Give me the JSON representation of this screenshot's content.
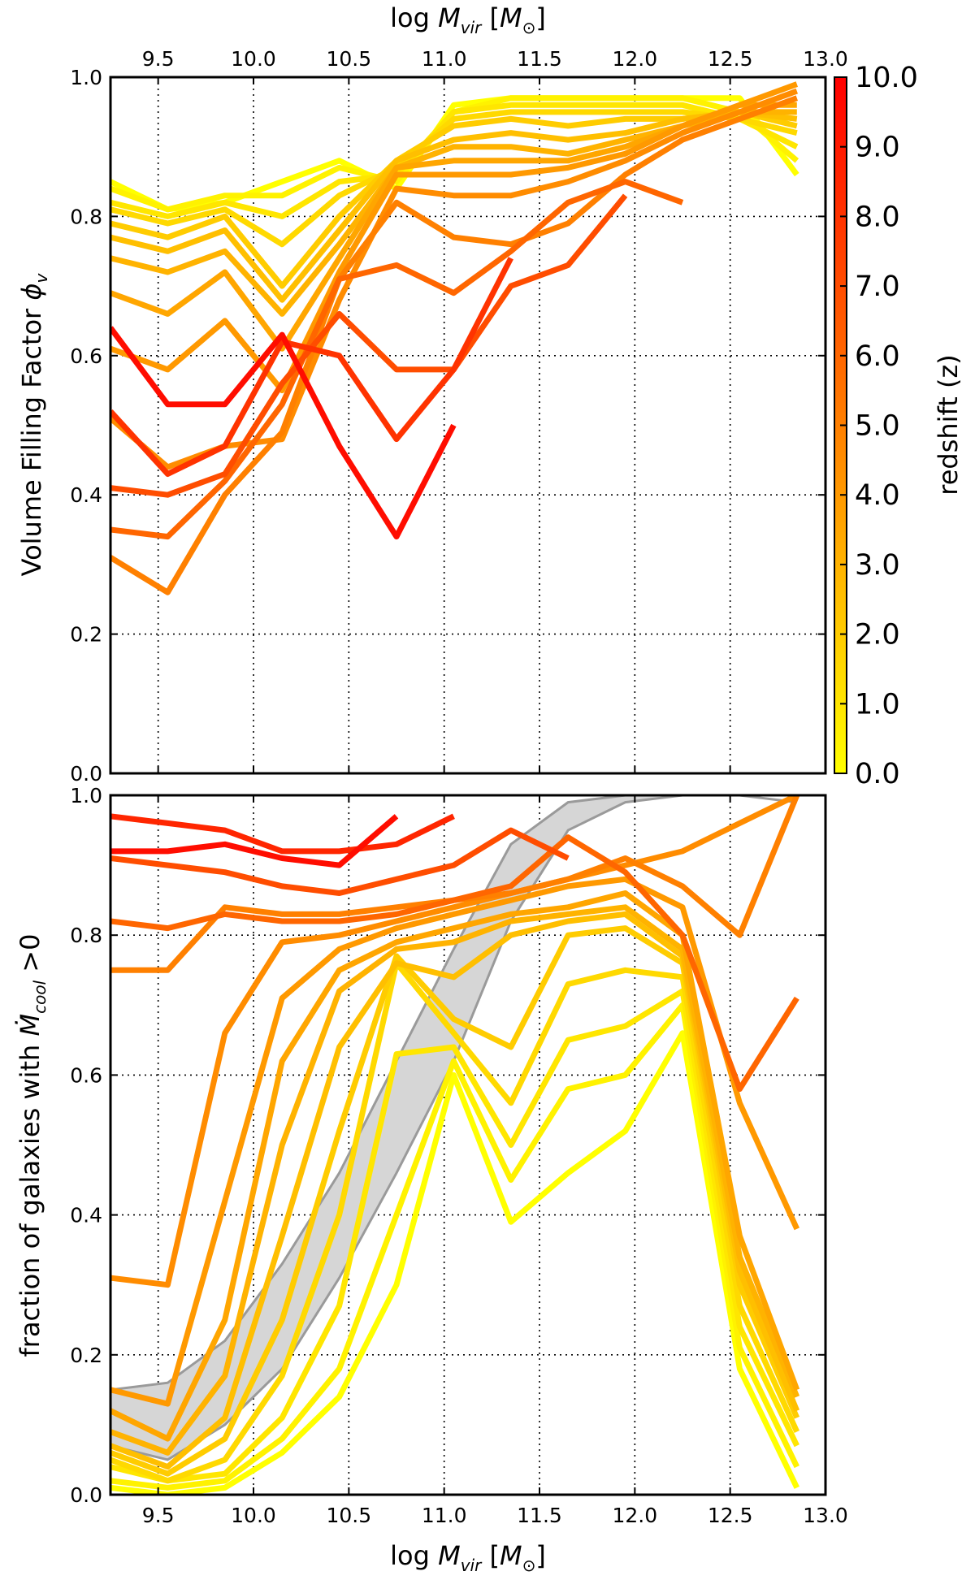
{
  "chart_data": [
    {
      "panel": "top",
      "type": "line",
      "xlabel_top": "log M_vir [M_⊙]",
      "ylabel": "Volume Filling Factor ϕ_v",
      "xlim": [
        9.25,
        13.0
      ],
      "ylim": [
        0.0,
        1.0
      ],
      "xticks": [
        "9.5",
        "10.0",
        "10.5",
        "11.0",
        "11.5",
        "12.0",
        "12.5",
        "13.0"
      ],
      "yticks": [
        "0.0",
        "0.2",
        "0.4",
        "0.6",
        "0.8",
        "1.0"
      ],
      "grid": true,
      "series": [
        {
          "z": 9.5,
          "x": [
            9.25,
            9.55,
            9.85,
            10.15,
            10.45,
            10.75,
            11.05
          ],
          "y": [
            0.64,
            0.53,
            0.53,
            0.63,
            0.47,
            0.34,
            0.5
          ]
        },
        {
          "z": 8.0,
          "x": [
            9.25,
            9.55,
            9.85,
            10.15,
            10.45,
            10.75,
            11.05,
            11.35
          ],
          "y": [
            0.52,
            0.43,
            0.47,
            0.62,
            0.6,
            0.48,
            0.58,
            0.74
          ]
        },
        {
          "z": 7.0,
          "x": [
            9.25,
            9.55,
            9.85,
            10.15,
            10.45,
            10.75,
            11.05,
            11.35,
            11.65,
            11.95
          ],
          "y": [
            0.41,
            0.4,
            0.43,
            0.56,
            0.66,
            0.58,
            0.58,
            0.7,
            0.73,
            0.83
          ]
        },
        {
          "z": 6.0,
          "x": [
            9.25,
            9.55,
            9.85,
            10.15,
            10.45,
            10.75,
            11.05,
            11.35,
            11.65,
            11.95,
            12.25
          ],
          "y": [
            0.35,
            0.34,
            0.42,
            0.53,
            0.71,
            0.73,
            0.69,
            0.75,
            0.82,
            0.85,
            0.82
          ]
        },
        {
          "z": 5.0,
          "x": [
            9.25,
            9.55,
            9.85,
            10.15,
            10.45,
            10.75,
            11.05,
            11.35,
            11.65,
            11.95,
            12.25,
            12.55,
            12.85
          ],
          "y": [
            0.31,
            0.26,
            0.4,
            0.49,
            0.71,
            0.82,
            0.77,
            0.76,
            0.79,
            0.86,
            0.91,
            0.94,
            0.97
          ]
        },
        {
          "z": 4.5,
          "x": [
            9.25,
            9.55,
            9.85,
            10.15,
            10.45,
            10.75,
            11.05,
            11.35,
            11.65,
            11.95,
            12.25,
            12.55,
            12.85
          ],
          "y": [
            0.51,
            0.44,
            0.47,
            0.48,
            0.68,
            0.84,
            0.83,
            0.83,
            0.85,
            0.88,
            0.92,
            0.95,
            0.98
          ]
        },
        {
          "z": 4.0,
          "x": [
            9.25,
            9.55,
            9.85,
            10.15,
            10.45,
            10.75,
            11.05,
            11.35,
            11.65,
            11.95,
            12.25,
            12.55,
            12.85
          ],
          "y": [
            0.61,
            0.58,
            0.65,
            0.55,
            0.72,
            0.86,
            0.86,
            0.86,
            0.87,
            0.89,
            0.93,
            0.96,
            0.99
          ]
        },
        {
          "z": 3.5,
          "x": [
            9.25,
            9.55,
            9.85,
            10.15,
            10.45,
            10.75,
            11.05,
            11.35,
            11.65,
            11.95,
            12.25,
            12.55,
            12.85
          ],
          "y": [
            0.69,
            0.66,
            0.72,
            0.61,
            0.74,
            0.87,
            0.88,
            0.88,
            0.88,
            0.9,
            0.93,
            0.96,
            0.96
          ]
        },
        {
          "z": 3.0,
          "x": [
            9.25,
            9.55,
            9.85,
            10.15,
            10.45,
            10.75,
            11.05,
            11.35,
            11.65,
            11.95,
            12.25,
            12.55,
            12.85
          ],
          "y": [
            0.74,
            0.72,
            0.75,
            0.66,
            0.76,
            0.87,
            0.9,
            0.9,
            0.89,
            0.91,
            0.93,
            0.95,
            0.95
          ]
        },
        {
          "z": 2.5,
          "x": [
            9.25,
            9.55,
            9.85,
            10.15,
            10.45,
            10.75,
            11.05,
            11.35,
            11.65,
            11.95,
            12.25,
            12.55,
            12.85
          ],
          "y": [
            0.77,
            0.75,
            0.78,
            0.68,
            0.78,
            0.88,
            0.91,
            0.92,
            0.91,
            0.92,
            0.94,
            0.95,
            0.94
          ]
        },
        {
          "z": 2.0,
          "x": [
            9.25,
            9.55,
            9.85,
            10.15,
            10.45,
            10.75,
            11.05,
            11.35,
            11.65,
            11.95,
            12.25,
            12.55,
            12.85
          ],
          "y": [
            0.79,
            0.77,
            0.8,
            0.7,
            0.8,
            0.88,
            0.93,
            0.94,
            0.93,
            0.94,
            0.94,
            0.95,
            0.93
          ]
        },
        {
          "z": 1.5,
          "x": [
            9.25,
            9.55,
            9.85,
            10.15,
            10.45,
            10.75,
            11.05,
            11.35,
            11.65,
            11.95,
            12.25,
            12.55,
            12.85
          ],
          "y": [
            0.81,
            0.79,
            0.81,
            0.76,
            0.83,
            0.87,
            0.94,
            0.95,
            0.95,
            0.95,
            0.95,
            0.94,
            0.92
          ]
        },
        {
          "z": 1.0,
          "x": [
            9.25,
            9.55,
            9.85,
            10.15,
            10.45,
            10.75,
            11.05,
            11.35,
            11.65,
            11.95,
            12.25,
            12.55,
            12.85
          ],
          "y": [
            0.82,
            0.8,
            0.82,
            0.8,
            0.85,
            0.86,
            0.95,
            0.96,
            0.96,
            0.96,
            0.96,
            0.94,
            0.9
          ]
        },
        {
          "z": 0.5,
          "x": [
            9.25,
            9.55,
            9.85,
            10.15,
            10.45,
            10.75,
            11.05,
            11.35,
            11.65,
            11.95,
            12.25,
            12.55,
            12.85
          ],
          "y": [
            0.84,
            0.81,
            0.83,
            0.83,
            0.87,
            0.85,
            0.95,
            0.97,
            0.97,
            0.97,
            0.97,
            0.95,
            0.88
          ]
        },
        {
          "z": 0.0,
          "x": [
            9.25,
            9.55,
            9.85,
            10.15,
            10.45,
            10.75,
            11.05,
            11.35,
            11.65,
            11.95,
            12.25,
            12.55,
            12.85
          ],
          "y": [
            0.85,
            0.81,
            0.82,
            0.85,
            0.88,
            0.84,
            0.96,
            0.97,
            0.97,
            0.97,
            0.97,
            0.97,
            0.86
          ]
        }
      ]
    },
    {
      "panel": "bottom",
      "type": "line",
      "xlabel": "log M_vir [M_⊙]",
      "ylabel": "fraction of galaxies with Ṁ_cool >0",
      "xlim": [
        9.25,
        13.0
      ],
      "ylim": [
        0.0,
        1.0
      ],
      "xticks": [
        "9.5",
        "10.0",
        "10.5",
        "11.0",
        "11.5",
        "12.0",
        "12.5",
        "13.0"
      ],
      "yticks": [
        "0.0",
        "0.2",
        "0.4",
        "0.6",
        "0.8",
        "1.0"
      ],
      "grid": true,
      "band": {
        "x": [
          9.25,
          9.55,
          9.85,
          10.15,
          10.45,
          10.75,
          11.05,
          11.35,
          11.65,
          11.95,
          12.25,
          12.55,
          12.85
        ],
        "upper": [
          0.15,
          0.16,
          0.22,
          0.33,
          0.46,
          0.62,
          0.78,
          0.93,
          0.99,
          1.0,
          1.0,
          1.0,
          0.99
        ],
        "lower": [
          0.07,
          0.05,
          0.1,
          0.18,
          0.31,
          0.46,
          0.62,
          0.82,
          0.95,
          0.99,
          1.0,
          1.0,
          0.99
        ]
      },
      "series": [
        {
          "z": 9.5,
          "x": [
            9.25,
            9.55,
            9.85,
            10.15,
            10.45,
            10.75
          ],
          "y": [
            0.92,
            0.92,
            0.93,
            0.91,
            0.9,
            0.97
          ]
        },
        {
          "z": 8.5,
          "x": [
            9.25,
            9.55,
            9.85,
            10.15,
            10.45,
            10.75,
            11.05
          ],
          "y": [
            0.97,
            0.96,
            0.95,
            0.92,
            0.92,
            0.93,
            0.97
          ]
        },
        {
          "z": 7.0,
          "x": [
            9.25,
            9.55,
            9.85,
            10.15,
            10.45,
            10.75,
            11.05,
            11.35,
            11.65
          ],
          "y": [
            0.91,
            0.9,
            0.89,
            0.87,
            0.86,
            0.88,
            0.9,
            0.95,
            0.91
          ]
        },
        {
          "z": 6.0,
          "x": [
            9.25,
            9.55,
            9.85,
            10.15,
            10.45,
            10.75,
            11.05,
            11.35,
            11.65,
            11.95,
            12.25,
            12.55,
            12.85
          ],
          "y": [
            0.82,
            0.81,
            0.83,
            0.82,
            0.82,
            0.83,
            0.85,
            0.87,
            0.94,
            0.89,
            0.8,
            0.58,
            0.71
          ]
        },
        {
          "z": 5.0,
          "x": [
            9.25,
            9.55,
            9.85,
            10.15,
            10.45,
            10.75,
            11.05,
            11.35,
            11.65,
            11.95,
            12.25,
            12.55,
            12.85
          ],
          "y": [
            0.75,
            0.75,
            0.84,
            0.83,
            0.83,
            0.84,
            0.85,
            0.86,
            0.88,
            0.91,
            0.87,
            0.8,
            1.0
          ]
        },
        {
          "z": 4.5,
          "x": [
            9.25,
            9.55,
            9.85,
            10.15,
            10.45,
            10.75,
            11.05,
            11.35,
            11.65,
            11.95,
            12.25,
            12.55,
            12.85
          ],
          "y": [
            0.31,
            0.3,
            0.66,
            0.79,
            0.8,
            0.82,
            0.84,
            0.86,
            0.88,
            0.9,
            0.92,
            0.96,
            1.0
          ]
        },
        {
          "z": 4.0,
          "x": [
            9.25,
            9.55,
            9.85,
            10.15,
            10.45,
            10.75,
            11.05,
            11.35,
            11.65,
            11.95,
            12.25,
            12.55,
            12.85
          ],
          "y": [
            0.15,
            0.13,
            0.42,
            0.71,
            0.78,
            0.81,
            0.83,
            0.85,
            0.87,
            0.88,
            0.84,
            0.56,
            0.38
          ]
        },
        {
          "z": 3.5,
          "x": [
            9.25,
            9.55,
            9.85,
            10.15,
            10.45,
            10.75,
            11.05,
            11.35,
            11.65,
            11.95,
            12.25,
            12.55,
            12.85
          ],
          "y": [
            0.12,
            0.08,
            0.25,
            0.62,
            0.75,
            0.79,
            0.81,
            0.83,
            0.84,
            0.86,
            0.8,
            0.37,
            0.15
          ]
        },
        {
          "z": 3.0,
          "x": [
            9.25,
            9.55,
            9.85,
            10.15,
            10.45,
            10.75,
            11.05,
            11.35,
            11.65,
            11.95,
            12.25,
            12.55,
            12.85
          ],
          "y": [
            0.09,
            0.06,
            0.17,
            0.5,
            0.72,
            0.78,
            0.79,
            0.82,
            0.83,
            0.84,
            0.78,
            0.34,
            0.14
          ]
        },
        {
          "z": 2.5,
          "x": [
            9.25,
            9.55,
            9.85,
            10.15,
            10.45,
            10.75,
            11.05,
            11.35,
            11.65,
            11.95,
            12.25,
            12.55,
            12.85
          ],
          "y": [
            0.07,
            0.04,
            0.11,
            0.37,
            0.64,
            0.76,
            0.74,
            0.8,
            0.82,
            0.83,
            0.77,
            0.32,
            0.12
          ]
        },
        {
          "z": 2.0,
          "x": [
            9.25,
            9.55,
            9.85,
            10.15,
            10.45,
            10.75,
            11.05,
            11.35,
            11.65,
            11.95,
            12.25,
            12.55,
            12.85
          ],
          "y": [
            0.06,
            0.03,
            0.08,
            0.25,
            0.52,
            0.77,
            0.68,
            0.64,
            0.8,
            0.81,
            0.76,
            0.3,
            0.11
          ]
        },
        {
          "z": 1.5,
          "x": [
            9.25,
            9.55,
            9.85,
            10.15,
            10.45,
            10.75,
            11.05,
            11.35,
            11.65,
            11.95,
            12.25,
            12.55,
            12.85
          ],
          "y": [
            0.05,
            0.02,
            0.05,
            0.17,
            0.4,
            0.76,
            0.66,
            0.56,
            0.73,
            0.75,
            0.74,
            0.27,
            0.09
          ]
        },
        {
          "z": 1.0,
          "x": [
            9.25,
            9.55,
            9.85,
            10.15,
            10.45,
            10.75,
            11.05,
            11.35,
            11.65,
            11.95,
            12.25,
            12.55,
            12.85
          ],
          "y": [
            0.04,
            0.02,
            0.03,
            0.11,
            0.27,
            0.63,
            0.64,
            0.5,
            0.65,
            0.67,
            0.72,
            0.24,
            0.07
          ]
        },
        {
          "z": 0.5,
          "x": [
            9.25,
            9.55,
            9.85,
            10.15,
            10.45,
            10.75,
            11.05,
            11.35,
            11.65,
            11.95,
            12.25,
            12.55,
            12.85
          ],
          "y": [
            0.02,
            0.01,
            0.02,
            0.08,
            0.18,
            0.4,
            0.62,
            0.45,
            0.58,
            0.6,
            0.7,
            0.21,
            0.04
          ]
        },
        {
          "z": 0.0,
          "x": [
            9.25,
            9.55,
            9.85,
            10.15,
            10.45,
            10.75,
            11.05,
            11.35,
            11.65,
            11.95,
            12.25,
            12.55,
            12.85
          ],
          "y": [
            0.01,
            0.0,
            0.01,
            0.06,
            0.14,
            0.3,
            0.6,
            0.39,
            0.46,
            0.52,
            0.66,
            0.18,
            0.01
          ]
        }
      ]
    }
  ],
  "colorbar": {
    "label": "redshift (z)",
    "min": 0.0,
    "max": 10.0,
    "ticks": [
      "0.0",
      "1.0",
      "2.0",
      "3.0",
      "4.0",
      "5.0",
      "6.0",
      "7.0",
      "8.0",
      "9.0",
      "10.0"
    ],
    "colors": [
      "#ffff00",
      "#ff0000"
    ]
  }
}
